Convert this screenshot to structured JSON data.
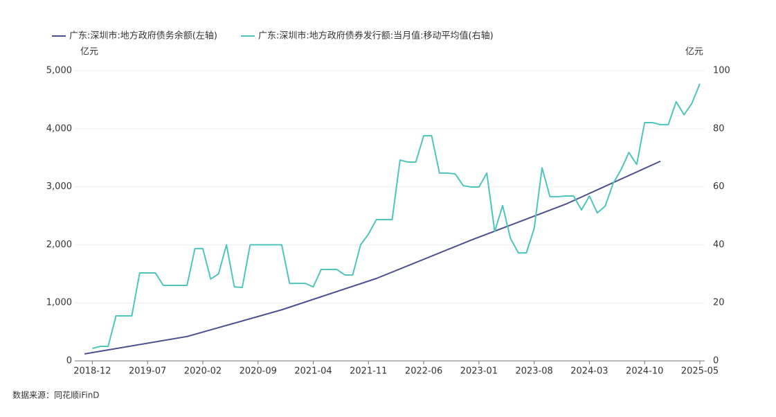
{
  "chart_data": {
    "type": "line",
    "source": "数据来源：同花顺iFinD",
    "y_unit": "亿元",
    "y2_unit": "亿元",
    "categories": [
      null,
      "2018-12",
      null,
      null,
      null,
      null,
      null,
      null,
      "2019-07",
      null,
      null,
      null,
      null,
      null,
      null,
      "2020-02",
      null,
      null,
      null,
      null,
      null,
      null,
      "2020-09",
      null,
      null,
      null,
      null,
      null,
      null,
      "2021-04",
      null,
      null,
      null,
      null,
      null,
      null,
      "2021-11",
      null,
      null,
      null,
      null,
      null,
      null,
      "2022-06",
      null,
      null,
      null,
      null,
      null,
      null,
      "2023-01",
      null,
      null,
      null,
      null,
      null,
      null,
      "2023-08",
      null,
      null,
      null,
      null,
      null,
      null,
      "2024-03",
      null,
      null,
      null,
      null,
      null,
      null,
      "2024-10",
      null,
      null,
      null,
      null,
      null,
      null,
      "2025-05"
    ],
    "series": [
      {
        "name": "广东:深圳市:地方政府债务余额(左轴)",
        "color": "#4b4f8c",
        "axis": "y",
        "connect_nulls": true,
        "values": [
          120,
          null,
          null,
          null,
          null,
          null,
          null,
          null,
          null,
          null,
          null,
          null,
          null,
          420,
          null,
          null,
          null,
          null,
          null,
          null,
          null,
          null,
          null,
          null,
          null,
          880,
          null,
          null,
          null,
          null,
          null,
          null,
          null,
          null,
          null,
          null,
          null,
          1420,
          null,
          null,
          null,
          null,
          null,
          null,
          null,
          null,
          null,
          null,
          null,
          2080,
          null,
          null,
          null,
          null,
          null,
          null,
          null,
          null,
          null,
          null,
          null,
          2700,
          null,
          null,
          null,
          null,
          null,
          null,
          null,
          null,
          null,
          null,
          null,
          3440,
          null,
          null,
          null,
          null,
          null
        ]
      },
      {
        "name": "广东:深圳市:地方政府债券发行额:当月值:移动平均值(右轴)",
        "color": "#4fc4bb",
        "axis": "y2",
        "values": [
          null,
          4.3,
          5,
          5,
          15.5,
          15.5,
          15.5,
          30.3,
          30.3,
          30.3,
          26,
          26,
          26,
          26,
          38.7,
          38.7,
          28.2,
          30,
          40,
          25.5,
          25.3,
          40,
          40,
          40,
          40,
          40,
          26.7,
          26.7,
          26.7,
          25.5,
          31.5,
          31.5,
          31.5,
          29.6,
          29.6,
          40,
          43.7,
          48.7,
          48.7,
          48.7,
          69.2,
          68.5,
          68.5,
          77.6,
          77.6,
          64.7,
          64.7,
          64.4,
          60.4,
          59.9,
          59.9,
          64.7,
          44.6,
          53.5,
          42.2,
          37.2,
          37.2,
          45.6,
          66.5,
          56.6,
          56.6,
          56.8,
          56.8,
          52,
          56.8,
          51,
          53.3,
          61.1,
          65.8,
          71.8,
          67.7,
          82.1,
          82.1,
          81.4,
          81.4,
          89.3,
          84.8,
          88.8,
          95.5
        ]
      }
    ],
    "ylim": [
      0,
      5000
    ],
    "yticks": [
      0,
      {
        "value": 1000,
        "label": "1,000"
      },
      {
        "value": 2000,
        "label": "2,000"
      },
      {
        "value": 3000,
        "label": "3,000"
      },
      {
        "value": 4000,
        "label": "4,000"
      },
      {
        "value": 5000,
        "label": "5,000"
      }
    ],
    "y2lim": [
      0,
      100
    ],
    "y2ticks": [
      0,
      20,
      40,
      60,
      80,
      100
    ],
    "grid": true
  }
}
